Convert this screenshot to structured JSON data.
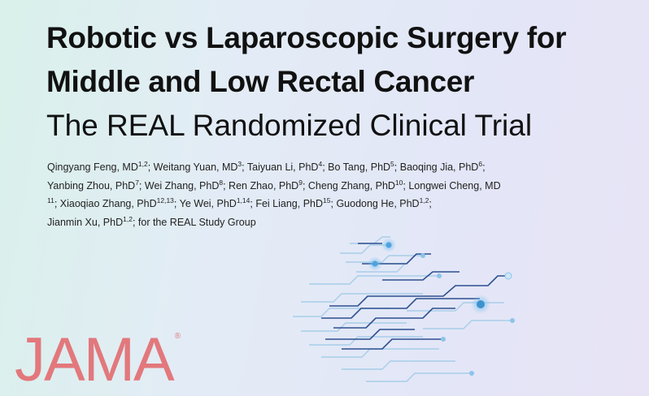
{
  "title": {
    "line1": "Robotic vs Laparoscopic Surgery for",
    "line2": "Middle and Low Rectal Cancer",
    "subtitle": "The REAL Randomized Clinical Trial"
  },
  "authors": [
    {
      "name": "Qingyang Feng, MD",
      "aff": "1,2",
      "sep": "; "
    },
    {
      "name": "Weitang Yuan, MD",
      "aff": "3",
      "sep": "; "
    },
    {
      "name": "Taiyuan Li, PhD",
      "aff": "4",
      "sep": "; "
    },
    {
      "name": "Bo Tang, PhD",
      "aff": "5",
      "sep": "; "
    },
    {
      "name": "Baoqing Jia, PhD",
      "aff": "6",
      "sep": ";"
    },
    {
      "name": "Yanbing Zhou, PhD",
      "aff": "7",
      "sep": "; "
    },
    {
      "name": "Wei Zhang, PhD",
      "aff": "8",
      "sep": "; "
    },
    {
      "name": "Ren Zhao, PhD",
      "aff": "9",
      "sep": "; "
    },
    {
      "name": "Cheng Zhang, PhD",
      "aff": "10",
      "sep": "; "
    },
    {
      "name": "Longwei Cheng, MD",
      "aff": "11",
      "sep": "; "
    },
    {
      "name": "Xiaoqiao Zhang, PhD",
      "aff": "12,13",
      "sep": "; "
    },
    {
      "name": "Ye Wei, PhD",
      "aff": "1,14",
      "sep": "; "
    },
    {
      "name": "Fei Liang, PhD",
      "aff": "15",
      "sep": "; "
    },
    {
      "name": "Guodong He, PhD",
      "aff": "1,2",
      "sep": ";"
    },
    {
      "name": "Jianmin Xu, PhD",
      "aff": "1,2",
      "sep": "; "
    }
  ],
  "group": "for the REAL Study Group",
  "logo": {
    "text": "JAMA",
    "mark": "®"
  },
  "colors": {
    "logo": "#e2787c",
    "circuit_dark": "#2c4f8f",
    "circuit_light": "#9ecae6",
    "node": "#4fa3dc"
  }
}
